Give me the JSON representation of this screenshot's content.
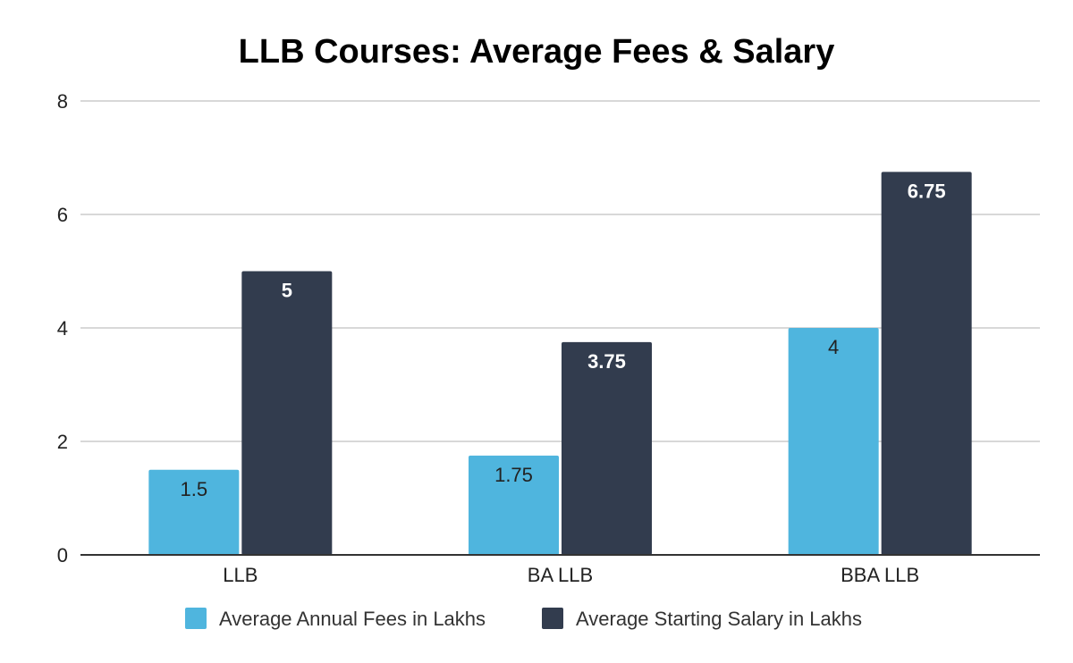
{
  "chart_data": {
    "type": "bar",
    "title": "LLB Courses: Average Fees & Salary",
    "xlabel": "",
    "ylabel": "",
    "categories": [
      "LLB",
      "BA LLB",
      "BBA LLB"
    ],
    "series": [
      {
        "name": "Average Annual Fees in Lakhs",
        "values": [
          1.5,
          1.75,
          4
        ],
        "labels": [
          "1.5",
          "1.75",
          "4"
        ],
        "color": "#4FB5DE",
        "label_style": "dark"
      },
      {
        "name": "Average Starting Salary in Lakhs",
        "values": [
          5,
          3.75,
          6.75
        ],
        "labels": [
          "5",
          "3.75",
          "6.75"
        ],
        "color": "#323C4E",
        "label_style": "light"
      }
    ],
    "ylim": [
      0,
      8
    ],
    "yticks": [
      0,
      2,
      4,
      6,
      8
    ],
    "ytick_labels": [
      "0",
      "2",
      "4",
      "6",
      "8"
    ],
    "grid": true,
    "gridline_color": "#CCCCCC",
    "axis_color": "#333333",
    "legend_position": "bottom"
  }
}
